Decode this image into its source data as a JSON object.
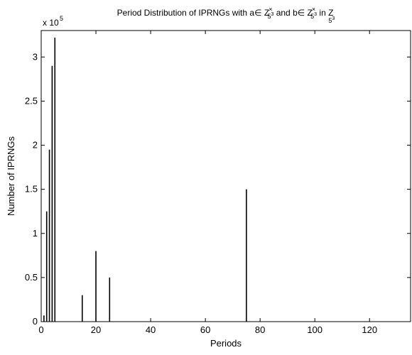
{
  "chart_data": {
    "type": "bar",
    "title_parts": [
      {
        "text": "Period Distribution of IPRNGs with a",
        "kind": "text"
      },
      {
        "text": "∈",
        "kind": "text"
      },
      {
        "text": " Z",
        "kind": "text"
      },
      {
        "text": "×",
        "kind": "sup"
      },
      {
        "text": "5",
        "kind": "sub"
      },
      {
        "text": "3",
        "kind": "subsup"
      },
      {
        "text": " and b",
        "kind": "text"
      },
      {
        "text": "∈",
        "kind": "text"
      },
      {
        "text": " Z",
        "kind": "text"
      },
      {
        "text": "×",
        "kind": "sup"
      },
      {
        "text": "5",
        "kind": "sub"
      },
      {
        "text": "3",
        "kind": "subsup"
      },
      {
        "text": " in  Z",
        "kind": "text"
      },
      {
        "text": "5",
        "kind": "sub"
      },
      {
        "text": "3",
        "kind": "subsup"
      }
    ],
    "xlabel": "Periods",
    "ylabel": "Number of IPRNGs",
    "y_multiplier": {
      "base": "x 10",
      "exponent": "5"
    },
    "xlim": [
      0,
      135
    ],
    "ylim": [
      0,
      3.3
    ],
    "xticks": [
      0,
      20,
      40,
      60,
      80,
      100,
      120
    ],
    "yticks": [
      0,
      0.5,
      1,
      1.5,
      2,
      2.5,
      3
    ],
    "ytick_labels": [
      "0",
      "0.5",
      "1",
      "1.5",
      "2",
      "2.5",
      "3"
    ],
    "grid": false,
    "series": [
      {
        "x": [
          1,
          2,
          3,
          4,
          5,
          15,
          20,
          25,
          75
        ],
        "values": [
          0.07,
          1.25,
          1.95,
          2.9,
          3.22,
          0.3,
          0.8,
          0.5,
          1.5
        ]
      }
    ],
    "bar_color": "#000000"
  }
}
